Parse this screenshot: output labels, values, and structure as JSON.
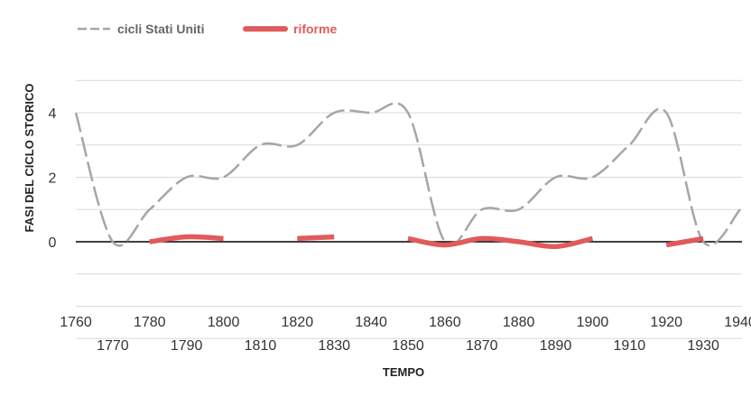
{
  "chart_data": {
    "type": "line",
    "xlabel": "TEMPO",
    "ylabel": "FASI DEL CICLO STORICO",
    "xlim": [
      1760,
      1940
    ],
    "ylim": [
      -3,
      5
    ],
    "x_ticks": [
      1760,
      1770,
      1780,
      1790,
      1800,
      1810,
      1820,
      1830,
      1840,
      1850,
      1860,
      1870,
      1880,
      1890,
      1900,
      1910,
      1920,
      1930,
      1940
    ],
    "y_ticks": [
      4,
      2,
      0
    ],
    "grid": true,
    "legend_position": "top-left",
    "series": [
      {
        "name": "cicli Stati Uniti",
        "color": "#A6A6A6",
        "style": "dashed",
        "points": [
          [
            1760,
            4
          ],
          [
            1770,
            0
          ],
          [
            1780,
            1
          ],
          [
            1790,
            2
          ],
          [
            1800,
            2
          ],
          [
            1810,
            3
          ],
          [
            1820,
            3
          ],
          [
            1830,
            4
          ],
          [
            1840,
            4
          ],
          [
            1850,
            4
          ],
          [
            1860,
            0
          ],
          [
            1870,
            1
          ],
          [
            1880,
            1
          ],
          [
            1890,
            2
          ],
          [
            1900,
            2
          ],
          [
            1910,
            3
          ],
          [
            1920,
            4
          ],
          [
            1930,
            0
          ],
          [
            1940,
            1
          ]
        ]
      },
      {
        "name": "riforme",
        "color": "#E05B5B",
        "style": "thick",
        "segments": [
          [
            [
              1780,
              0
            ],
            [
              1790,
              0.15
            ],
            [
              1800,
              0.1
            ]
          ],
          [
            [
              1820,
              0.1
            ],
            [
              1830,
              0.15
            ]
          ],
          [
            [
              1850,
              0.1
            ],
            [
              1860,
              -0.1
            ],
            [
              1870,
              0.1
            ],
            [
              1880,
              0
            ],
            [
              1890,
              -0.15
            ],
            [
              1900,
              0.1
            ]
          ],
          [
            [
              1920,
              -0.1
            ],
            [
              1930,
              0.1
            ]
          ]
        ]
      }
    ]
  }
}
